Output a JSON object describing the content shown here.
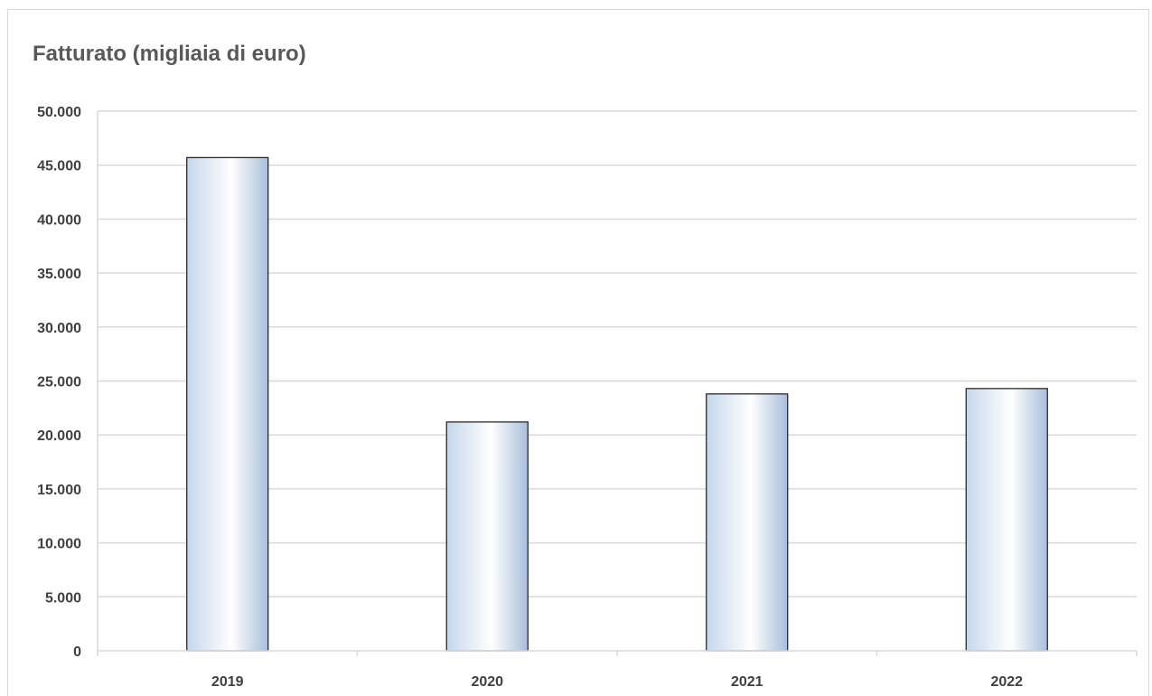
{
  "chart_data": {
    "type": "bar",
    "title": "Fatturato (migliaia di euro)",
    "xlabel": "",
    "ylabel": "",
    "categories": [
      "2019",
      "2020",
      "2021",
      "2022"
    ],
    "values": [
      45700,
      21200,
      23800,
      24300
    ],
    "ylim": [
      0,
      50000
    ],
    "yticks": [
      0,
      5000,
      10000,
      15000,
      20000,
      25000,
      30000,
      35000,
      40000,
      45000,
      50000
    ],
    "ytick_labels": [
      "0",
      "5.000",
      "10.000",
      "15.000",
      "20.000",
      "25.000",
      "30.000",
      "35.000",
      "40.000",
      "45.000",
      "50.000"
    ],
    "grid": true,
    "legend": "none",
    "colors": {
      "bar_edge": "#1a1a1a",
      "bar_gradient": [
        "#c5d7ec",
        "#ffffff",
        "#a9bedb"
      ],
      "grid": "#d9d9d9",
      "title": "#595959",
      "tick_text": "#404040"
    }
  }
}
